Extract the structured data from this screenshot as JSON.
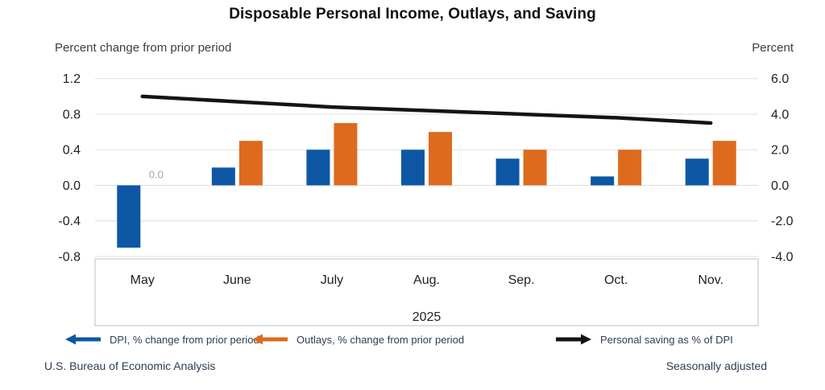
{
  "title": "Disposable Personal Income, Outlays, and Saving",
  "left_axis_label": "Percent change from prior period",
  "right_axis_label": "Percent",
  "footer": {
    "left": "U.S. Bureau of Economic Analysis",
    "right": "Seasonally adjusted"
  },
  "colors": {
    "dpi_blue": "#0d57a5",
    "outlays_orange": "#dd6b1e",
    "saving_black": "#141414",
    "gridline": "#dedede",
    "label_box_border": "#bfbfbf",
    "annotation_gray": "#a6a6a6"
  },
  "chart_data": {
    "type": "bar",
    "subtype": "grouped bars with overlaid line",
    "categories": [
      "May",
      "June",
      "July",
      "Aug.",
      "Sep.",
      "Oct.",
      "Nov."
    ],
    "year_label": "2025",
    "series": [
      {
        "name": "DPI, % change from prior period",
        "type": "bar",
        "axis": "left",
        "color": "#0d57a5",
        "marker": "arrow-left",
        "values": [
          -0.7,
          0.2,
          0.4,
          0.4,
          0.3,
          0.1,
          0.3
        ]
      },
      {
        "name": "Outlays, % change from prior period",
        "type": "bar",
        "axis": "left",
        "color": "#dd6b1e",
        "marker": "arrow-left",
        "values": [
          0.0,
          0.5,
          0.7,
          0.6,
          0.4,
          0.4,
          0.5
        ]
      },
      {
        "name": "Personal saving as % of DPI",
        "type": "line",
        "axis": "right",
        "color": "#141414",
        "marker": "arrow-right",
        "values": [
          5.0,
          4.7,
          4.4,
          4.2,
          4.0,
          3.8,
          3.5
        ]
      }
    ],
    "left_axis": {
      "title": "Percent change from prior period",
      "ticks": [
        1.2,
        0.8,
        0.4,
        0.0,
        -0.4,
        -0.8
      ],
      "max": 1.2,
      "min": -0.8
    },
    "right_axis": {
      "title": "Percent",
      "ticks": [
        6.0,
        4.0,
        2.0,
        0.0,
        -2.0,
        -4.0
      ],
      "max": 6.0,
      "min": -4.0
    },
    "grid": true,
    "legend_position": "bottom",
    "annotations": [
      {
        "text": "0.0",
        "category": "May",
        "series": "Outlays, % change from prior period",
        "color": "#a6a6a6"
      }
    ]
  }
}
